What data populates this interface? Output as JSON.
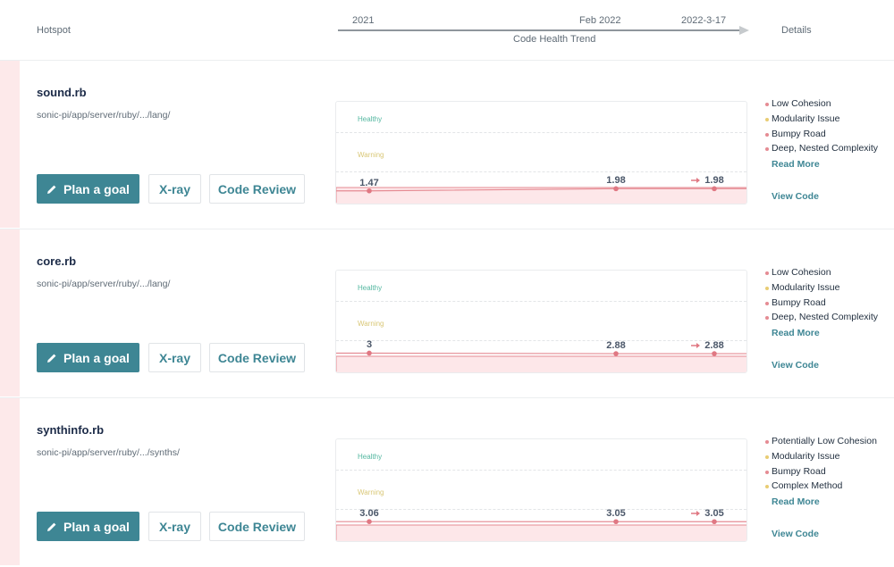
{
  "header": {
    "hotspot_label": "Hotspot",
    "details_label": "Details",
    "timeline_label": "Code Health Trend",
    "timeline_dates": [
      "2021",
      "Feb 2022",
      "2022-3-17"
    ]
  },
  "zones": {
    "healthy": "Healthy",
    "warning": "Warning"
  },
  "buttons": {
    "plan_goal": "Plan a goal",
    "xray": "X-ray",
    "code_review": "Code Review"
  },
  "links": {
    "read_more": "Read More",
    "view_code": "View Code"
  },
  "colors": {
    "accent": "#3e8694",
    "problem": "#e58b93",
    "warning": "#e8cc73",
    "healthy": "#54b7a0"
  },
  "hotspots": [
    {
      "file": "sound.rb",
      "path": "sonic-pi/app/server/ruby/.../lang/",
      "scores": [
        "1.47",
        "1.98",
        "1.98"
      ],
      "score_values": [
        1.47,
        1.98,
        1.98
      ],
      "trend": "up",
      "issues": [
        {
          "label": "Low Cohesion",
          "severity": "problem"
        },
        {
          "label": "Modularity Issue",
          "severity": "warning"
        },
        {
          "label": "Bumpy Road",
          "severity": "problem"
        },
        {
          "label": "Deep, Nested Complexity",
          "severity": "problem"
        }
      ]
    },
    {
      "file": "core.rb",
      "path": "sonic-pi/app/server/ruby/.../lang/",
      "scores": [
        "3",
        "2.88",
        "2.88"
      ],
      "score_values": [
        3,
        2.88,
        2.88
      ],
      "trend": "up",
      "issues": [
        {
          "label": "Low Cohesion",
          "severity": "problem"
        },
        {
          "label": "Modularity Issue",
          "severity": "warning"
        },
        {
          "label": "Bumpy Road",
          "severity": "problem"
        },
        {
          "label": "Deep, Nested Complexity",
          "severity": "problem"
        }
      ]
    },
    {
      "file": "synthinfo.rb",
      "path": "sonic-pi/app/server/ruby/.../synths/",
      "scores": [
        "3.06",
        "3.05",
        "3.05"
      ],
      "score_values": [
        3.06,
        3.05,
        3.05
      ],
      "trend": "up",
      "issues": [
        {
          "label": "Potentially Low Cohesion",
          "severity": "problem"
        },
        {
          "label": "Modularity Issue",
          "severity": "warning"
        },
        {
          "label": "Bumpy Road",
          "severity": "problem"
        },
        {
          "label": "Complex Method",
          "severity": "warning"
        }
      ]
    }
  ]
}
